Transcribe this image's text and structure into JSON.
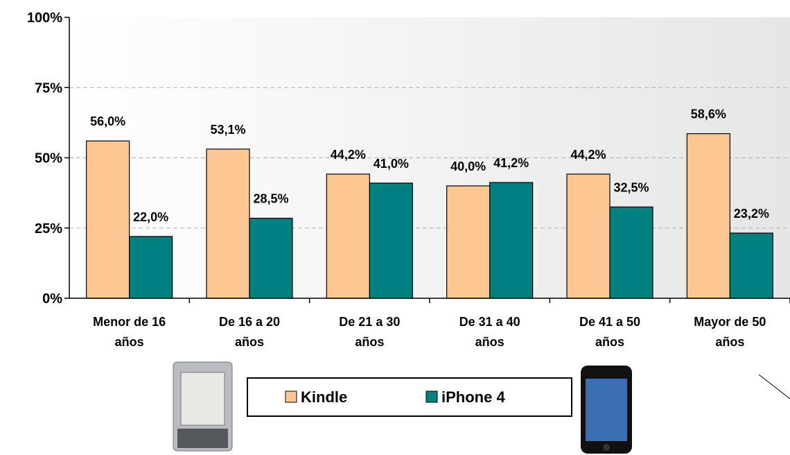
{
  "chart_data": {
    "type": "bar",
    "categories": [
      "Menor de 16 años",
      "De 16 a 20 años",
      "De 21 a 30 años",
      "De 31 a 40 años",
      "De 41 a 50 años",
      "Mayor de 50 años"
    ],
    "series": [
      {
        "name": "Kindle",
        "color": "#fcc793",
        "values": [
          56.0,
          53.1,
          44.2,
          40.0,
          44.2,
          58.6
        ],
        "value_labels": [
          "56,0%",
          "53,1%",
          "44,2%",
          "40,0%",
          "44,2%",
          "58,6%"
        ]
      },
      {
        "name": "iPhone 4",
        "color": "#008080",
        "values": [
          22.0,
          28.5,
          41.0,
          41.2,
          32.5,
          23.2
        ],
        "value_labels": [
          "22,0%",
          "28,5%",
          "41,0%",
          "41,2%",
          "32,5%",
          "23,2%"
        ]
      }
    ],
    "ylim": [
      0,
      100
    ],
    "yticks": [
      {
        "value": 0,
        "label": "0%"
      },
      {
        "value": 25,
        "label": "25%"
      },
      {
        "value": 50,
        "label": "50%"
      },
      {
        "value": 75,
        "label": "75%"
      },
      {
        "value": 100,
        "label": "100%"
      }
    ],
    "grid": true
  }
}
